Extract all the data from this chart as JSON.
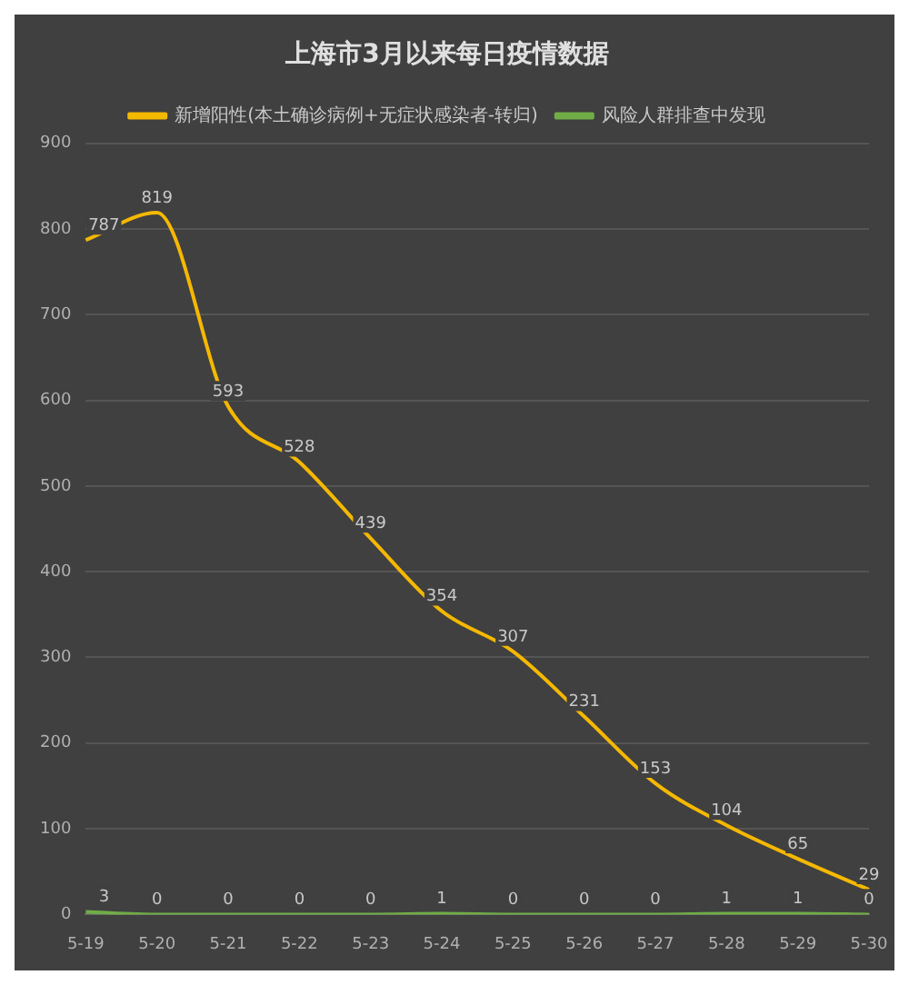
{
  "chart_data": {
    "type": "line",
    "title": "上海市3月以来每日疫情数据",
    "categories": [
      "5-19",
      "5-20",
      "5-21",
      "5-22",
      "5-23",
      "5-24",
      "5-25",
      "5-26",
      "5-27",
      "5-28",
      "5-29",
      "5-30"
    ],
    "series": [
      {
        "name": "新增阳性(本土确诊病例+无症状感染者-转归)",
        "color": "#f5b800",
        "values": [
          787,
          819,
          593,
          528,
          439,
          354,
          307,
          231,
          153,
          104,
          65,
          29
        ]
      },
      {
        "name": "风险人群排查中发现",
        "color": "#70ad47",
        "values": [
          3,
          0,
          0,
          0,
          0,
          1,
          0,
          0,
          0,
          1,
          1,
          0
        ]
      }
    ],
    "ylim": [
      0,
      900
    ],
    "yticks": [
      0,
      100,
      200,
      300,
      400,
      500,
      600,
      700,
      800,
      900
    ],
    "grid": "y",
    "legend": "top",
    "data_labels": true,
    "marker": "none"
  }
}
